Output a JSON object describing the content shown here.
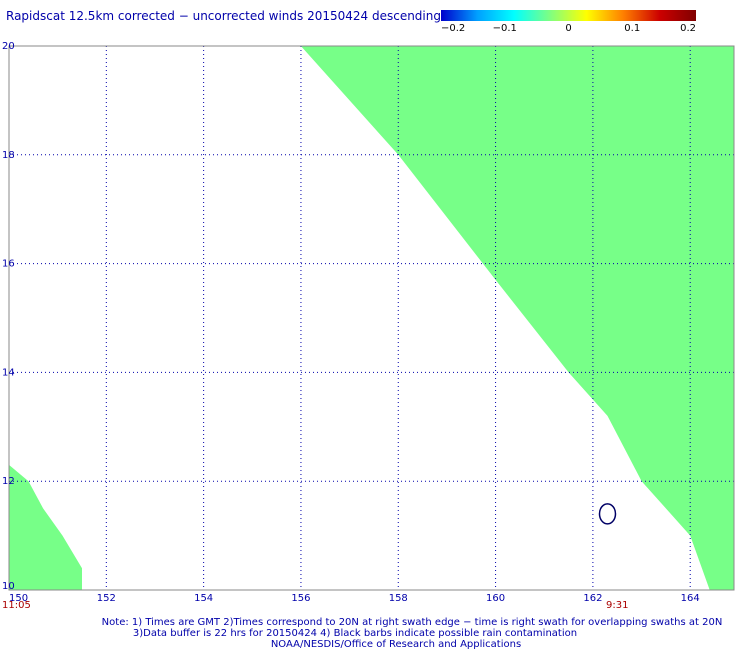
{
  "title": "Rapidscat 12.5km corrected − uncorrected winds 20150424 descending",
  "colorbar": {
    "labels": [
      "−0.2",
      "−0.1",
      "0",
      "0.1",
      "0.2"
    ],
    "colors": [
      "#0000cc",
      "#00a0ff",
      "#00ffff",
      "#80ff80",
      "#ffff00",
      "#ff8000",
      "#cc0000",
      "#800000"
    ]
  },
  "colors": {
    "fill": "#77ff88",
    "grid": "#0000aa",
    "text": "#0000aa",
    "time": "#aa0000",
    "contour": "#000066"
  },
  "time_labels": {
    "left": "11:05",
    "right": "9:31"
  },
  "notes": [
    "Note: 1) Times are GMT 2)Times correspond to 20N at right swath edge − time is right swath for overlapping swaths at 20N",
    "3)Data buffer is 22 hrs for 20150424 4) Black barbs indicate possible rain contamination",
    "NOAA/NESDIS/Office of Research and Applications"
  ],
  "chart_data": {
    "type": "heatmap",
    "title": "Rapidscat 12.5km corrected − uncorrected winds 20150424 descending",
    "xlabel": "",
    "ylabel": "",
    "x_ticks": [
      150,
      152,
      154,
      156,
      158,
      160,
      162,
      164
    ],
    "y_ticks": [
      10,
      12,
      14,
      16,
      18,
      20
    ],
    "xlim": [
      150,
      164.9
    ],
    "ylim": [
      10,
      20
    ],
    "grid": true,
    "value_scale": [
      -0.2,
      0.2
    ],
    "filled_value": 0.0,
    "swaths": [
      {
        "name": "right swath",
        "boundary": [
          [
            156.0,
            20.0
          ],
          [
            158.0,
            18.0
          ],
          [
            160.0,
            15.7
          ],
          [
            161.5,
            14.0
          ],
          [
            162.3,
            13.2
          ],
          [
            163.0,
            12.0
          ],
          [
            164.0,
            11.0
          ],
          [
            164.4,
            10.0
          ]
        ],
        "extends_to": "east"
      },
      {
        "name": "left swath",
        "boundary": [
          [
            150.0,
            12.3
          ],
          [
            150.4,
            12.0
          ],
          [
            150.7,
            11.5
          ],
          [
            151.1,
            11.0
          ],
          [
            151.5,
            10.4
          ],
          [
            151.5,
            10.0
          ]
        ],
        "extends_to": "west"
      }
    ],
    "contour": {
      "lon": 162.3,
      "lat": 11.4
    }
  }
}
